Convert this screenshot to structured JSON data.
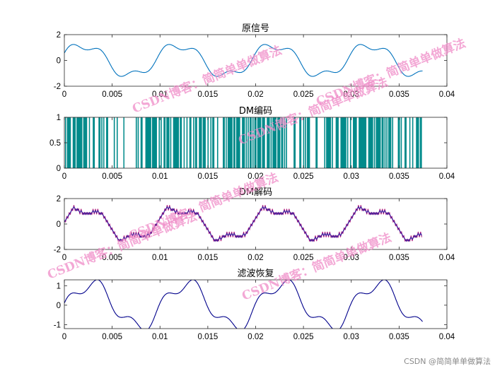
{
  "chart_data": [
    {
      "type": "line",
      "title": "原信号",
      "xlabel": "",
      "ylabel": "",
      "xlim": [
        0,
        0.04
      ],
      "ylim": [
        -2,
        2
      ],
      "x_ticks": [
        "0",
        "0.005",
        "0.01",
        "0.015",
        "0.02",
        "0.025",
        "0.03",
        "0.035",
        "0.04"
      ],
      "y_ticks": [
        "2",
        "0",
        "-2"
      ],
      "color": "#0072bd",
      "series": [
        {
          "kind": "continuous",
          "x_range": [
            0,
            0.0375
          ],
          "signal": "sum of sines: fundamental 100 Hz plus 300 Hz harmonic",
          "peak": 1.4
        }
      ]
    },
    {
      "type": "bar",
      "title": "DM编码",
      "xlabel": "",
      "ylabel": "",
      "xlim": [
        0,
        0.04
      ],
      "ylim": [
        0,
        1
      ],
      "x_ticks": [
        "0",
        "0.005",
        "0.01",
        "0.015",
        "0.02",
        "0.025",
        "0.03",
        "0.035",
        "0.04"
      ],
      "y_ticks": [
        "1",
        "0.5",
        "0"
      ],
      "color": "#008b8b",
      "series": [
        {
          "kind": "binary pulse train (values 0 / 1)",
          "x_range": [
            0,
            0.0375
          ]
        }
      ]
    },
    {
      "type": "line",
      "title": "DM解码",
      "xlabel": "",
      "ylabel": "",
      "xlim": [
        0,
        0.04
      ],
      "ylim": [
        -2,
        2
      ],
      "x_ticks": [
        "0",
        "0.005",
        "0.01",
        "0.015",
        "0.02",
        "0.025",
        "0.03",
        "0.035",
        "0.04"
      ],
      "y_ticks": [
        "2",
        "0",
        "-2"
      ],
      "colors": [
        "#3a1f9e",
        "#b0187a"
      ],
      "series": [
        {
          "kind": "staircase approximation of original signal",
          "x_range": [
            0,
            0.0375
          ]
        }
      ]
    },
    {
      "type": "line",
      "title": "滤波恢复",
      "xlabel": "",
      "ylabel": "",
      "xlim": [
        0,
        0.04
      ],
      "ylim": [
        -1.2,
        1.3
      ],
      "x_ticks": [
        "0",
        "0.005",
        "0.01",
        "0.015",
        "0.02",
        "0.025",
        "0.03",
        "0.035",
        "0.04"
      ],
      "y_ticks": [
        "1",
        "0",
        "-1"
      ],
      "color": "#00008b",
      "series": [
        {
          "kind": "continuous smoothed recovery",
          "x_range": [
            0,
            0.0375
          ],
          "peak": 1.2
        }
      ]
    }
  ],
  "watermarks": [
    "CSDN博客：简简单单做算法",
    "CSDN博客：简简单单做算法",
    "CSDN博客：简简单单做算法",
    "CSDN博客：简简单单做算法",
    "CSDN博客：简简单单做算法",
    "CSDN博客：简简单单做算法"
  ],
  "credit": "CSDN @简简单单做算法"
}
